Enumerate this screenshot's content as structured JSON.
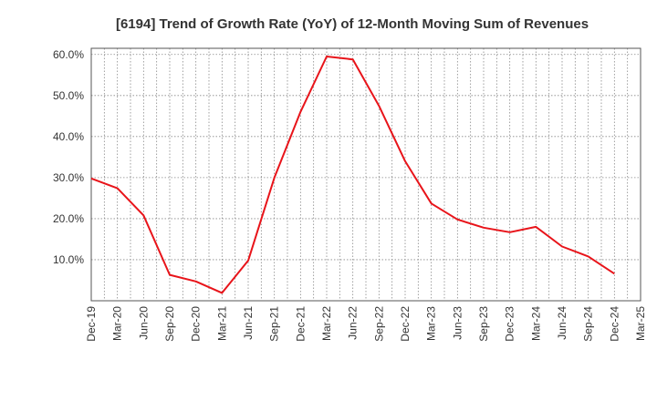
{
  "chart_data": {
    "type": "line",
    "title": "[6194]  Trend of Growth Rate (YoY) of 12-Month Moving Sum of Revenues",
    "xlabel": "",
    "ylabel": "",
    "x": [
      "Dec-19",
      "Mar-20",
      "Jun-20",
      "Sep-20",
      "Dec-20",
      "Mar-21",
      "Jun-21",
      "Sep-21",
      "Dec-21",
      "Mar-22",
      "Jun-22",
      "Sep-22",
      "Dec-22",
      "Mar-23",
      "Jun-23",
      "Sep-23",
      "Dec-23",
      "Mar-24",
      "Jun-24",
      "Sep-24",
      "Dec-24",
      "Mar-25"
    ],
    "series": [
      {
        "values": [
          29.8,
          27.4,
          20.8,
          6.3,
          4.7,
          1.9,
          9.8,
          30.0,
          46.0,
          59.5,
          58.8,
          47.5,
          34.0,
          23.7,
          19.8,
          17.8,
          16.7,
          18.0,
          13.2,
          10.8,
          6.6,
          null
        ],
        "color": "#e8141a"
      }
    ],
    "y_ticks": [
      "10.0%",
      "20.0%",
      "30.0%",
      "40.0%",
      "50.0%",
      "60.0%"
    ],
    "ylim": [
      0,
      61.5
    ],
    "grid": true,
    "legend": "none"
  }
}
